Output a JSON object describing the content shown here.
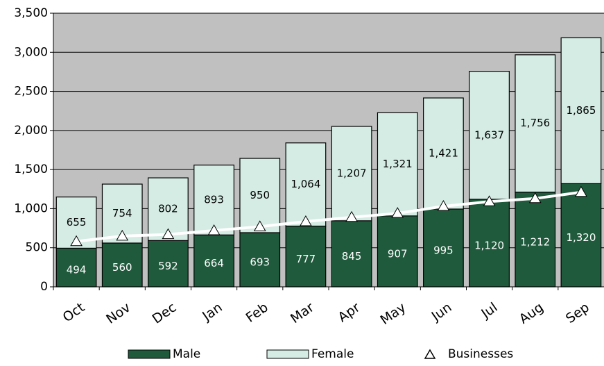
{
  "chart_data": {
    "type": "stacked_bar_line",
    "categories": [
      "Oct",
      "Nov",
      "Dec",
      "Jan",
      "Feb",
      "Mar",
      "Apr",
      "May",
      "Jun",
      "Jul",
      "Aug",
      "Sep"
    ],
    "series": [
      {
        "name": "Male",
        "type": "bar",
        "color": "#1f5a3c",
        "values": [
          494,
          560,
          592,
          664,
          693,
          777,
          845,
          907,
          995,
          1120,
          1212,
          1320
        ],
        "value_labels": [
          "494",
          "560",
          "592",
          "664",
          "693",
          "777",
          "845",
          "907",
          "995",
          "1,120",
          "1,212",
          "1,320"
        ]
      },
      {
        "name": "Female",
        "type": "bar",
        "color": "#d4ece4",
        "values": [
          655,
          754,
          802,
          893,
          950,
          1064,
          1207,
          1321,
          1421,
          1637,
          1756,
          1865
        ],
        "value_labels": [
          "655",
          "754",
          "802",
          "893",
          "950",
          "1,064",
          "1,207",
          "1,321",
          "1,421",
          "1,637",
          "1,756",
          "1,865"
        ]
      },
      {
        "name": "Businesses",
        "type": "line",
        "color": "#ffffff",
        "values": [
          580,
          650,
          670,
          720,
          770,
          835,
          890,
          940,
          1030,
          1090,
          1130,
          1210
        ]
      }
    ],
    "ylim": [
      0,
      3500
    ],
    "yticks": [
      0,
      500,
      {
        "value": 1000,
        "label": "1,000"
      },
      {
        "value": 1500,
        "label": "1,500"
      },
      {
        "value": 2000,
        "label": "2,000"
      },
      {
        "value": 2500,
        "label": "2,500"
      },
      {
        "value": 3000,
        "label": "3,000"
      },
      {
        "value": 3500,
        "label": "3,500"
      }
    ],
    "grid": true,
    "legend": "bottom"
  }
}
